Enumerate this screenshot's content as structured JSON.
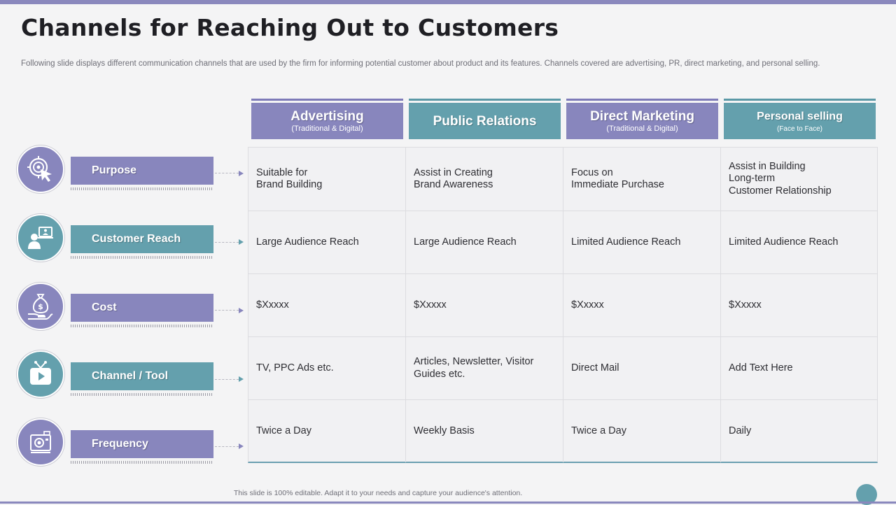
{
  "title": "Channels for Reaching Out to Customers",
  "subtitle": "Following slide displays different communication channels that are used by the firm for informing potential customer about product and its features. Channels covered are advertising, PR, direct marketing, and personal selling.",
  "columns": [
    {
      "title": "Advertising",
      "sub": "(Traditional & Digital)"
    },
    {
      "title": "Public Relations",
      "sub": ""
    },
    {
      "title": "Direct Marketing",
      "sub": "(Traditional & Digital)"
    },
    {
      "title": "Personal selling",
      "sub": "(Face to Face)"
    }
  ],
  "rows": [
    {
      "label": "Purpose",
      "icon": "target-cursor-icon",
      "cells": [
        "Suitable for\nBrand Building",
        "Assist in Creating\nBrand Awareness",
        "Focus on\nImmediate Purchase",
        "Assist in Building\nLong-term\nCustomer Relationship"
      ]
    },
    {
      "label": "Customer Reach",
      "icon": "user-laptop-icon",
      "cells": [
        "Large Audience Reach",
        "Large Audience Reach",
        "Limited Audience Reach",
        "Limited Audience Reach"
      ]
    },
    {
      "label": "Cost",
      "icon": "money-bag-hand-icon",
      "cells": [
        "$Xxxxx",
        "$Xxxxx",
        "$Xxxxx",
        "$Xxxxx"
      ]
    },
    {
      "label": "Channel / Tool",
      "icon": "tv-play-icon",
      "cells": [
        "TV, PPC Ads etc.",
        "Articles, Newsletter, Visitor\nGuides etc.",
        "Direct Mail",
        "Add Text Here"
      ]
    },
    {
      "label": "Frequency",
      "icon": "camera-icon",
      "cells": [
        "Twice a Day",
        "Weekly Basis",
        "Twice a Day",
        "Daily"
      ]
    }
  ],
  "footer": "This slide is 100% editable.  Adapt it to your needs and capture your audience's attention.",
  "colors": {
    "purple": "#8886bd",
    "teal": "#64a0ad",
    "background": "#f4f4f5"
  }
}
